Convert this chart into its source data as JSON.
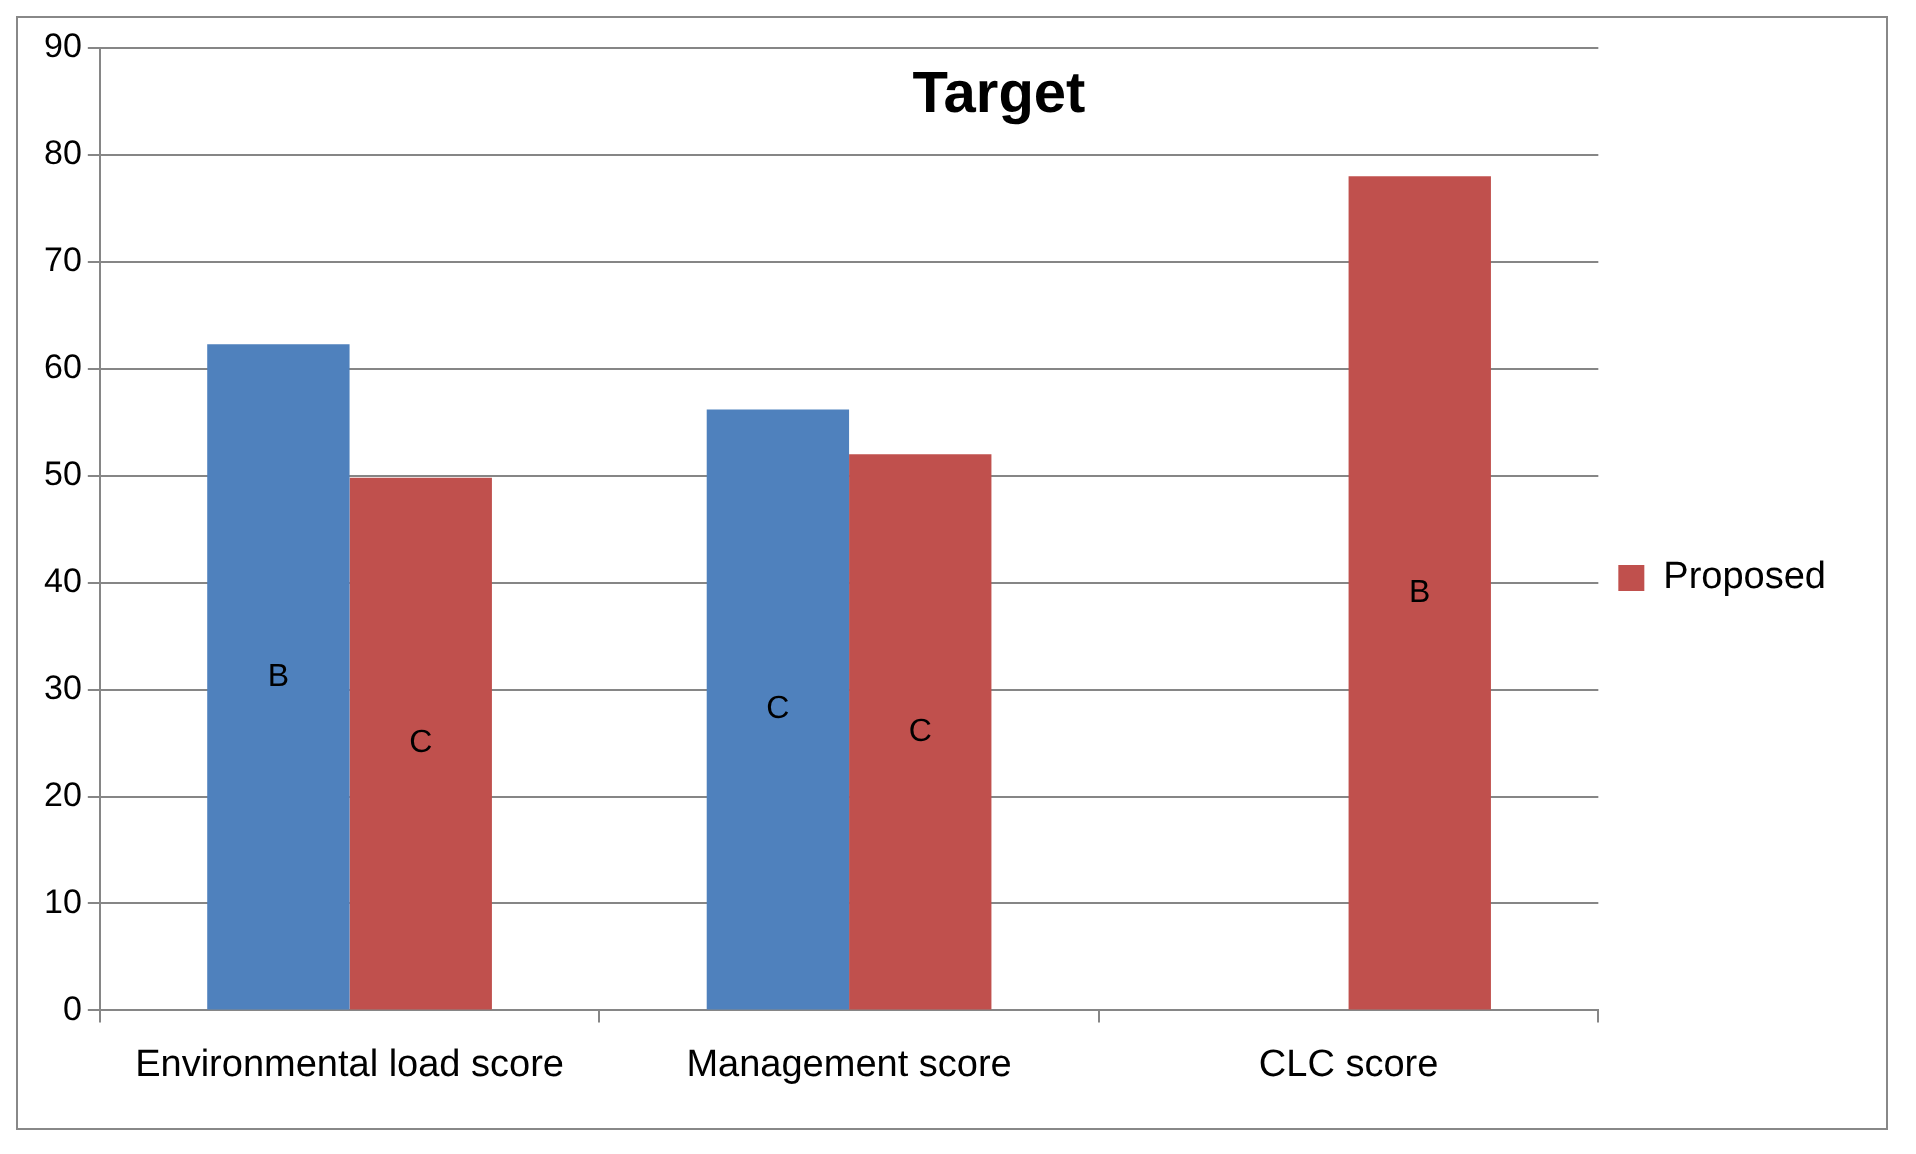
{
  "chart_data": {
    "type": "bar",
    "title": "Target",
    "categories": [
      "Environmental load score",
      "Management score",
      "CLC score"
    ],
    "series": [
      {
        "color": "#4f81bd",
        "values": [
          62.3,
          56.2,
          null
        ],
        "value_labels": [
          "B",
          "C",
          null
        ]
      },
      {
        "name": "Proposed",
        "color": "#c0504d",
        "values": [
          49.8,
          52,
          78
        ],
        "value_labels": [
          "C",
          "C",
          "B"
        ]
      }
    ],
    "ylim": [
      0,
      90
    ],
    "yticks": [
      0,
      10,
      20,
      30,
      40,
      50,
      60,
      70,
      80,
      90
    ],
    "grid": "y",
    "legend": "right"
  }
}
